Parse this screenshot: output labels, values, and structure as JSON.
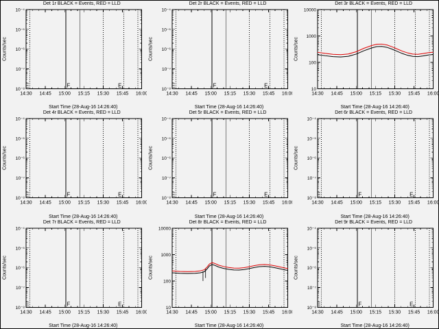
{
  "chart_data": {
    "type": "line",
    "grid_shape": [
      3,
      3
    ],
    "title_note": "BLACK = Events, RED = LLD",
    "xlabel": "Start Time (28-Aug-16 14:26:40)",
    "ylabel": "Counts/sec",
    "x_axis": {
      "start_minute": 0,
      "end_minute": 90,
      "tick_minutes": [
        0,
        15,
        30,
        45,
        60,
        75,
        90
      ],
      "tick_labels": [
        "14:30",
        "14:45",
        "15:00",
        "15:15",
        "15:30",
        "15:45",
        "16:00"
      ],
      "minor_step": 5
    },
    "vlines": [
      {
        "t": 3,
        "style": "dotted"
      },
      {
        "t": 31,
        "style": "solid"
      },
      {
        "t": 42,
        "style": "solid"
      },
      {
        "t": 60,
        "style": "dotted"
      },
      {
        "t": 76,
        "style": "dotted"
      },
      {
        "t": 87,
        "style": "dotted"
      }
    ],
    "event_markers": [
      {
        "t": 1,
        "label": "E"
      },
      {
        "t": 33,
        "label": "F"
      },
      {
        "t": 73,
        "label": "E"
      }
    ],
    "series_colors": {
      "events": "#000000",
      "lld": "#dd0000"
    },
    "panels": [
      {
        "id": "det-1r",
        "title": "Det 1r BLACK = Events, RED = LLD",
        "empty": true,
        "show_markers": true,
        "yticks": [
          {
            "f": 1,
            "label": "10⁻⁴"
          },
          {
            "f": 0.75,
            "label": "10⁻⁵"
          },
          {
            "f": 0.5,
            "label": "10⁻⁶"
          },
          {
            "f": 0.25,
            "label": "10⁻⁷"
          },
          {
            "f": 0,
            "label": "10⁻⁸"
          }
        ]
      },
      {
        "id": "det-2r",
        "title": "Det 2r BLACK = Events, RED = LLD",
        "empty": true,
        "show_markers": true,
        "yticks": [
          {
            "f": 1,
            "label": "10⁻⁴"
          },
          {
            "f": 0.75,
            "label": "10⁻⁵"
          },
          {
            "f": 0.5,
            "label": "10⁻⁶"
          },
          {
            "f": 0.25,
            "label": "10⁻⁷"
          },
          {
            "f": 0,
            "label": "10⁻⁸"
          }
        ]
      },
      {
        "id": "det-3r",
        "title": "Det 3r BLACK = Events, RED = LLD",
        "empty": false,
        "show_markers": false,
        "ylog": {
          "min": 10,
          "max": 10000
        },
        "yticks": [
          {
            "f": 1,
            "label": "10000"
          },
          {
            "f": 0.6667,
            "label": "1000"
          },
          {
            "f": 0.3333,
            "label": "100"
          },
          {
            "f": 0,
            "label": "10"
          }
        ],
        "series": [
          {
            "name": "Events",
            "color": "events",
            "points": [
              [
                0,
                195
              ],
              [
                6,
                178
              ],
              [
                12,
                165
              ],
              [
                18,
                160
              ],
              [
                24,
                170
              ],
              [
                30,
                205
              ],
              [
                36,
                275
              ],
              [
                42,
                350
              ],
              [
                46,
                395
              ],
              [
                50,
                400
              ],
              [
                54,
                370
              ],
              [
                58,
                315
              ],
              [
                62,
                260
              ],
              [
                66,
                215
              ],
              [
                70,
                185
              ],
              [
                74,
                168
              ],
              [
                78,
                165
              ],
              [
                82,
                175
              ],
              [
                86,
                190
              ],
              [
                90,
                198
              ]
            ]
          },
          {
            "name": "LLD",
            "color": "lld",
            "points": [
              [
                0,
                240
              ],
              [
                6,
                218
              ],
              [
                12,
                202
              ],
              [
                18,
                196
              ],
              [
                24,
                208
              ],
              [
                30,
                252
              ],
              [
                36,
                340
              ],
              [
                42,
                432
              ],
              [
                46,
                485
              ],
              [
                50,
                492
              ],
              [
                54,
                455
              ],
              [
                58,
                388
              ],
              [
                62,
                320
              ],
              [
                66,
                264
              ],
              [
                70,
                228
              ],
              [
                74,
                206
              ],
              [
                78,
                202
              ],
              [
                82,
                215
              ],
              [
                86,
                232
              ],
              [
                90,
                242
              ]
            ]
          }
        ]
      },
      {
        "id": "det-4r",
        "title": "Det 4r BLACK = Events, RED = LLD",
        "empty": true,
        "show_markers": true,
        "yticks": [
          {
            "f": 1,
            "label": "10⁻⁴"
          },
          {
            "f": 0.75,
            "label": "10⁻⁵"
          },
          {
            "f": 0.5,
            "label": "10⁻⁶"
          },
          {
            "f": 0.25,
            "label": "10⁻⁷"
          },
          {
            "f": 0,
            "label": "10⁻⁸"
          }
        ]
      },
      {
        "id": "det-5r",
        "title": "Det 5r BLACK = Events, RED = LLD",
        "empty": true,
        "show_markers": true,
        "yticks": [
          {
            "f": 1,
            "label": "10⁻⁴"
          },
          {
            "f": 0.75,
            "label": "10⁻⁵"
          },
          {
            "f": 0.5,
            "label": "10⁻⁶"
          },
          {
            "f": 0.25,
            "label": "10⁻⁷"
          },
          {
            "f": 0,
            "label": "10⁻⁸"
          }
        ]
      },
      {
        "id": "det-6r",
        "title": "Det 6r BLACK = Events, RED = LLD",
        "empty": true,
        "show_markers": true,
        "yticks": [
          {
            "f": 1,
            "label": "10⁻⁴"
          },
          {
            "f": 0.75,
            "label": "10⁻⁵"
          },
          {
            "f": 0.5,
            "label": "10⁻⁶"
          },
          {
            "f": 0.25,
            "label": "10⁻⁷"
          },
          {
            "f": 0,
            "label": "10⁻⁸"
          }
        ]
      },
      {
        "id": "det-7r",
        "title": "Det 7r BLACK = Events, RED = LLD",
        "empty": true,
        "show_markers": true,
        "yticks": [
          {
            "f": 1,
            "label": "10⁻⁴"
          },
          {
            "f": 0.75,
            "label": "10⁻⁵"
          },
          {
            "f": 0.5,
            "label": "10⁻⁶"
          },
          {
            "f": 0.25,
            "label": "10⁻⁷"
          },
          {
            "f": 0,
            "label": "10⁻⁸"
          }
        ]
      },
      {
        "id": "det-8r",
        "title": "Det 8r BLACK = Events, RED = LLD",
        "empty": false,
        "show_markers": false,
        "ylog": {
          "min": 10,
          "max": 10000
        },
        "yticks": [
          {
            "f": 1,
            "label": "10000"
          },
          {
            "f": 0.6667,
            "label": "1000"
          },
          {
            "f": 0.3333,
            "label": "100"
          },
          {
            "f": 0,
            "label": "10"
          }
        ],
        "spikes": [
          {
            "t": 24,
            "v1": 100,
            "v2": 230
          },
          {
            "t": 26,
            "v1": 130,
            "v2": 300
          }
        ],
        "series": [
          {
            "name": "Events",
            "color": "events",
            "points": [
              [
                0,
                205
              ],
              [
                6,
                196
              ],
              [
                12,
                192
              ],
              [
                18,
                196
              ],
              [
                22,
                205
              ],
              [
                25,
                225
              ],
              [
                27,
                280
              ],
              [
                29,
                370
              ],
              [
                31,
                420
              ],
              [
                33,
                395
              ],
              [
                36,
                340
              ],
              [
                40,
                300
              ],
              [
                44,
                275
              ],
              [
                48,
                262
              ],
              [
                52,
                260
              ],
              [
                56,
                272
              ],
              [
                60,
                295
              ],
              [
                64,
                325
              ],
              [
                68,
                350
              ],
              [
                72,
                358
              ],
              [
                76,
                345
              ],
              [
                80,
                318
              ],
              [
                84,
                288
              ],
              [
                88,
                262
              ],
              [
                90,
                252
              ]
            ]
          },
          {
            "name": "LLD",
            "color": "lld",
            "points": [
              [
                0,
                242
              ],
              [
                6,
                231
              ],
              [
                12,
                227
              ],
              [
                18,
                231
              ],
              [
                22,
                242
              ],
              [
                25,
                266
              ],
              [
                27,
                330
              ],
              [
                29,
                437
              ],
              [
                31,
                496
              ],
              [
                33,
                466
              ],
              [
                36,
                401
              ],
              [
                40,
                354
              ],
              [
                44,
                325
              ],
              [
                48,
                309
              ],
              [
                52,
                307
              ],
              [
                56,
                321
              ],
              [
                60,
                348
              ],
              [
                64,
                384
              ],
              [
                68,
                413
              ],
              [
                72,
                422
              ],
              [
                76,
                407
              ],
              [
                80,
                375
              ],
              [
                84,
                340
              ],
              [
                88,
                309
              ],
              [
                90,
                297
              ]
            ]
          }
        ]
      },
      {
        "id": "det-9r",
        "title": "Det 9r BLACK = Events, RED = LLD",
        "empty": true,
        "show_markers": true,
        "yticks": [
          {
            "f": 1,
            "label": "10⁻⁴"
          },
          {
            "f": 0.75,
            "label": "10⁻⁵"
          },
          {
            "f": 0.5,
            "label": "10⁻⁶"
          },
          {
            "f": 0.25,
            "label": "10⁻⁷"
          },
          {
            "f": 0,
            "label": "10⁻⁸"
          }
        ]
      }
    ]
  }
}
